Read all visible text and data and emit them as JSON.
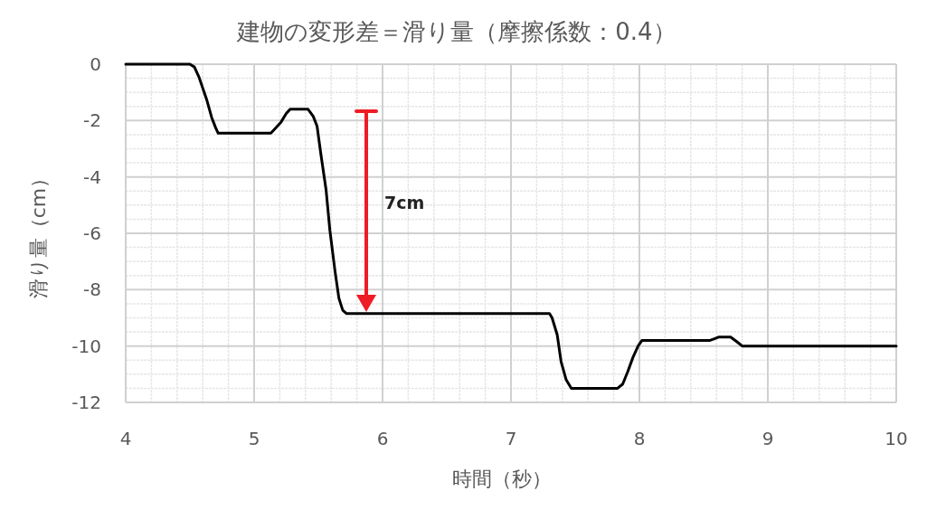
{
  "chart_data": {
    "type": "line",
    "title": "建物の変形差＝滑り量（摩擦係数：0.4）",
    "xlabel": "時間（秒）",
    "ylabel": "滑り量（cm）",
    "series": [
      {
        "color": "#000000",
        "x": [
          4,
          4.5,
          4.535,
          4.57,
          4.63,
          4.67,
          4.7,
          4.72,
          5.13,
          5.16,
          5.21,
          5.25,
          5.28,
          5.42,
          5.46,
          5.49,
          5.52,
          5.56,
          5.59,
          5.63,
          5.66,
          5.69,
          5.72,
          5.74,
          7.3,
          7.32,
          7.36,
          7.39,
          7.43,
          7.47,
          7.83,
          7.87,
          7.91,
          7.95,
          7.99,
          8.02,
          8.55,
          8.58,
          8.62,
          8.71,
          8.76,
          8.8,
          10
        ],
        "values": [
          0,
          0,
          -0.1,
          -0.45,
          -1.25,
          -1.9,
          -2.25,
          -2.45,
          -2.45,
          -2.3,
          -2.05,
          -1.75,
          -1.6,
          -1.6,
          -1.85,
          -2.2,
          -3.2,
          -4.45,
          -5.9,
          -7.35,
          -8.3,
          -8.73,
          -8.85,
          -8.85,
          -8.85,
          -9.0,
          -9.6,
          -10.55,
          -11.2,
          -11.5,
          -11.5,
          -11.35,
          -10.9,
          -10.4,
          -10.0,
          -9.8,
          -9.8,
          -9.75,
          -9.68,
          -9.68,
          -9.85,
          -10.0,
          -10.0
        ]
      }
    ],
    "xlim": [
      4,
      10
    ],
    "xticks": [
      4,
      5,
      6,
      7,
      8,
      9,
      10
    ],
    "ylim": [
      -12,
      0
    ],
    "yticks": [
      -12,
      -10,
      -8,
      -6,
      -4,
      -2,
      0
    ],
    "grid": true,
    "marker": "none",
    "line_style": "solid",
    "annotations": [
      "7cm"
    ]
  }
}
